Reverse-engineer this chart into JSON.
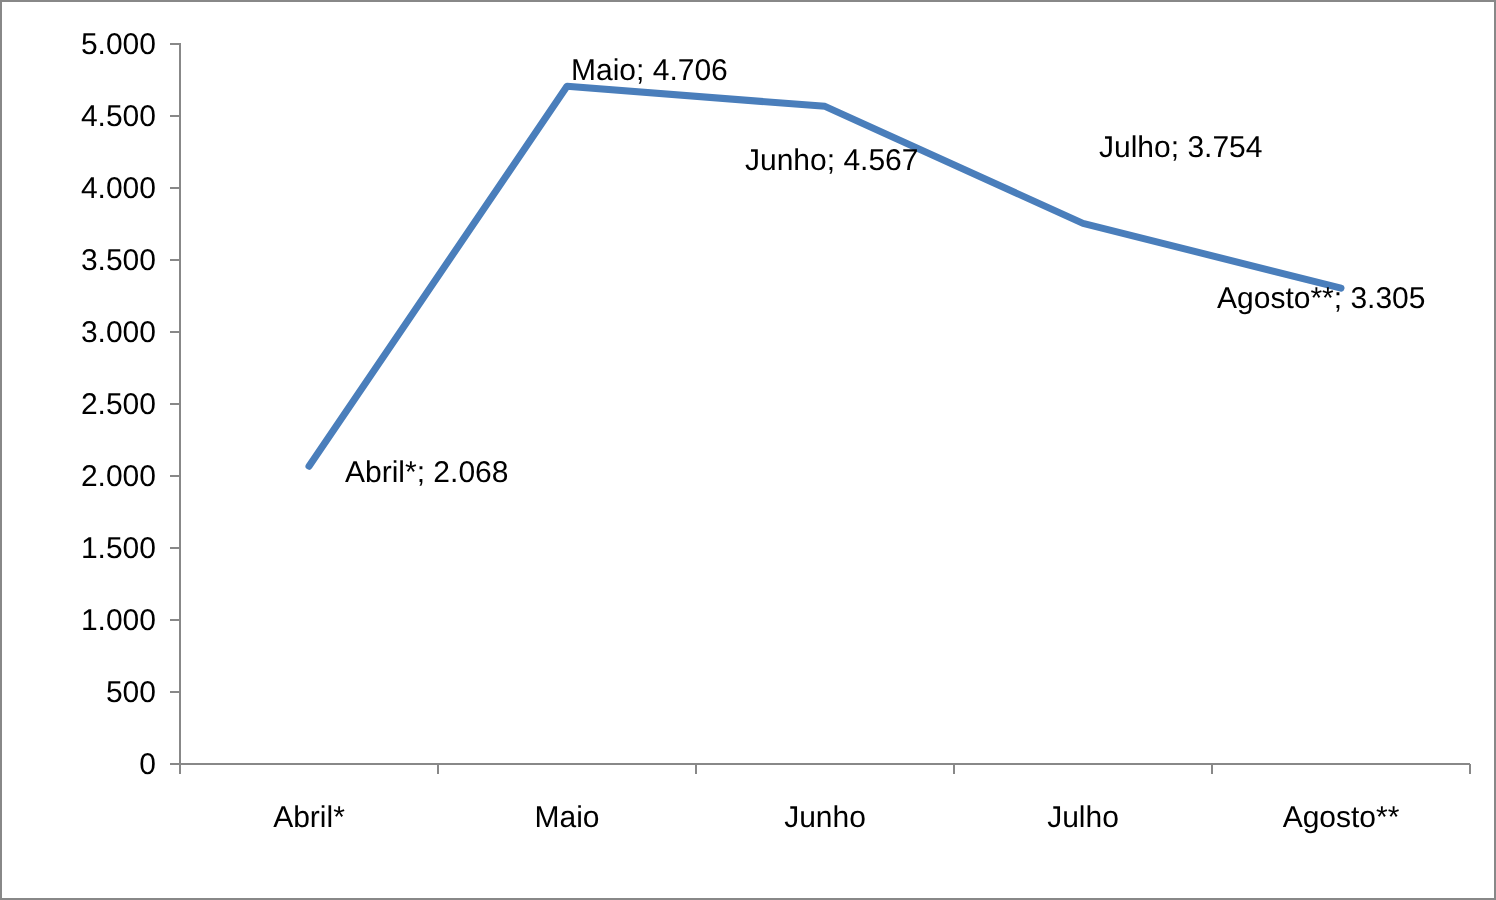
{
  "chart_data": {
    "type": "line",
    "categories": [
      "Abril*",
      "Maio",
      "Junho",
      "Julho",
      "Agosto**"
    ],
    "series": [
      {
        "color": "#4a7ebb",
        "values": [
          2068,
          4706,
          4567,
          3754,
          3305
        ],
        "value_labels": [
          "Abril*; 2.068",
          "Maio; 4.706",
          "Junho; 4.567",
          "Julho; 3.754",
          "Agosto**; 3.305"
        ]
      }
    ],
    "ylim": [
      0,
      5000
    ],
    "yticks": [
      {
        "value": 0,
        "label": "0"
      },
      {
        "value": 500,
        "label": "500"
      },
      {
        "value": 1000,
        "label": "1.000"
      },
      {
        "value": 1500,
        "label": "1.500"
      },
      {
        "value": 2000,
        "label": "2.000"
      },
      {
        "value": 2500,
        "label": "2.500"
      },
      {
        "value": 3000,
        "label": "3.000"
      },
      {
        "value": 3500,
        "label": "3.500"
      },
      {
        "value": 4000,
        "label": "4.000"
      },
      {
        "value": 4500,
        "label": "4.500"
      },
      {
        "value": 5000,
        "label": "5.000"
      }
    ],
    "grid": false,
    "marker": "none",
    "line_style": "solid"
  }
}
